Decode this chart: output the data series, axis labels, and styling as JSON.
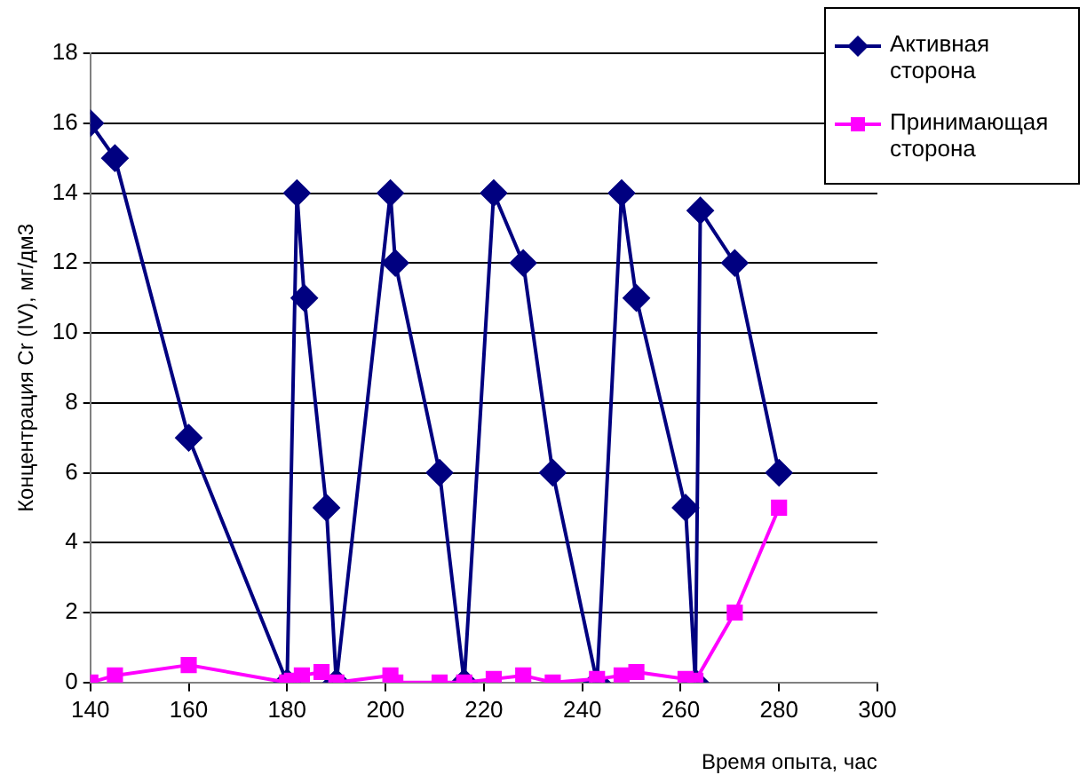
{
  "chart_data": {
    "type": "line",
    "xlabel": "Время опыта, час",
    "ylabel": "Концентрация Cr (IV), мг/дм3",
    "xlim": [
      140,
      300
    ],
    "xticks": [
      140,
      160,
      180,
      200,
      220,
      240,
      260,
      280,
      300
    ],
    "ylim": [
      0,
      18
    ],
    "yticks": [
      0,
      2,
      4,
      6,
      8,
      10,
      12,
      14,
      16,
      18
    ],
    "grid": "y",
    "legend": "top right",
    "line_style": "solid",
    "series": [
      {
        "name": "Активная сторона",
        "color": "#000080",
        "marker": "diamond",
        "x": [
          140,
          145,
          160,
          180,
          182,
          183.5,
          188,
          190,
          201,
          202,
          211,
          216,
          222,
          228,
          234,
          243,
          248,
          251,
          261,
          263,
          264,
          271,
          280
        ],
        "values": [
          16,
          15,
          7,
          0,
          14,
          11,
          5,
          0,
          14,
          12,
          6,
          0,
          14,
          12,
          6,
          0,
          14,
          11,
          5,
          0,
          13.5,
          12,
          6
        ]
      },
      {
        "name": "Принимающая сторона",
        "color": "#ff00ff",
        "marker": "square",
        "x": [
          140,
          145,
          160,
          180,
          181,
          183,
          187,
          190,
          201,
          202,
          211,
          216,
          222,
          228,
          234,
          243,
          248,
          251,
          261,
          263,
          271,
          280
        ],
        "values": [
          0,
          0.2,
          0.5,
          0,
          0.05,
          0.2,
          0.3,
          0,
          0.2,
          0,
          0,
          0,
          0.1,
          0.2,
          0,
          0.1,
          0.2,
          0.3,
          0.1,
          0.05,
          2,
          5
        ]
      }
    ]
  }
}
